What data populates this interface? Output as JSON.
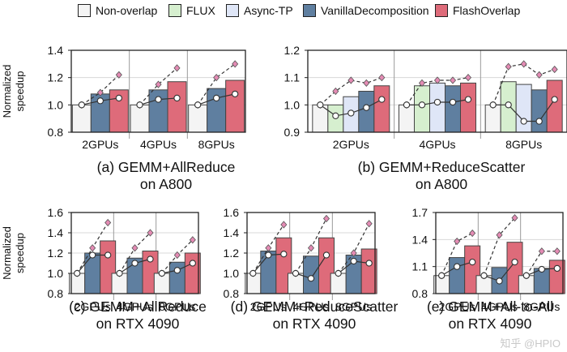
{
  "legend": {
    "items": [
      {
        "label": "Non-overlap",
        "color": "#f4f4f4"
      },
      {
        "label": "FLUX",
        "color": "#d6efcf"
      },
      {
        "label": "Async-TP",
        "color": "#dfe6f7"
      },
      {
        "label": "VanillaDecomposition",
        "color": "#5f7fa0"
      },
      {
        "label": "FlashOverlap",
        "color": "#de6b7a"
      }
    ]
  },
  "shared_ylabel": "Normalized speedup",
  "watermark": "知乎 @HPIO",
  "chart_data": [
    {
      "id": "a",
      "type": "bar",
      "title_line1": "(a) GEMM+AllReduce",
      "title_line2": "on A800",
      "ylabel": "Normalized speedup",
      "ylim": [
        0.8,
        1.4
      ],
      "yticks": [
        "0.8",
        "1.0",
        "1.2",
        "1.4"
      ],
      "groups": [
        "2GPUs",
        "4GPUs",
        "8GPUs"
      ],
      "methods": [
        "VanillaDecomposition",
        "FlashOverlap"
      ],
      "values": [
        [
          1.08,
          1.11
        ],
        [
          1.11,
          1.17
        ],
        [
          1.12,
          1.18
        ]
      ],
      "lines": [
        {
          "style": "dashed-diamond",
          "values": [
            [
              1.0,
              1.09,
              1.22
            ],
            [
              1.0,
              1.15,
              1.27
            ],
            [
              1.0,
              1.2,
              1.3
            ]
          ]
        },
        {
          "style": "solid-circle",
          "values": [
            [
              1.0,
              1.03,
              1.05
            ],
            [
              1.0,
              1.04,
              1.05
            ],
            [
              1.0,
              1.05,
              1.08
            ]
          ]
        }
      ]
    },
    {
      "id": "b",
      "type": "bar",
      "title_line1": "(b) GEMM+ReduceScatter",
      "title_line2": "on A800",
      "ylabel": "",
      "ylim": [
        0.9,
        1.2
      ],
      "yticks": [
        "0.9",
        "1.0",
        "1.1",
        "1.2"
      ],
      "groups": [
        "2GPUs",
        "4GPUs",
        "8GPUs"
      ],
      "methods": [
        "FLUX",
        "Async-TP",
        "VanillaDecomposition",
        "FlashOverlap"
      ],
      "values": [
        [
          1.0,
          1.03,
          1.05,
          1.07
        ],
        [
          1.07,
          1.08,
          1.07,
          1.08
        ],
        [
          1.085,
          1.075,
          1.055,
          1.09
        ]
      ],
      "lines": [
        {
          "style": "dashed-diamond",
          "values": [
            [
              1.0,
              1.05,
              1.09,
              1.08,
              1.1
            ],
            [
              1.0,
              1.08,
              1.09,
              1.09,
              1.1
            ],
            [
              1.0,
              1.14,
              1.15,
              1.11,
              1.13
            ]
          ]
        },
        {
          "style": "solid-circle",
          "values": [
            [
              1.0,
              0.96,
              0.97,
              0.99,
              1.02
            ],
            [
              1.0,
              1.0,
              1.01,
              1.01,
              1.02
            ],
            [
              1.0,
              1.0,
              0.94,
              0.94,
              1.02
            ]
          ]
        }
      ]
    },
    {
      "id": "c",
      "type": "bar",
      "title_line1": "(c) GEMM+AllReduce",
      "title_line2": "on RTX 4090",
      "ylabel": "Normalized speedup",
      "ylim": [
        0.8,
        1.6
      ],
      "yticks": [
        "0.8",
        "1.0",
        "1.2",
        "1.4",
        "1.6"
      ],
      "groups": [
        "2GPUs",
        "4GPUs",
        "8GPUs"
      ],
      "methods": [
        "VanillaDecomposition",
        "FlashOverlap"
      ],
      "values": [
        [
          1.2,
          1.32
        ],
        [
          1.15,
          1.22
        ],
        [
          1.11,
          1.2
        ]
      ],
      "lines": [
        {
          "style": "dashed-diamond",
          "values": [
            [
              1.0,
              1.25,
              1.5
            ],
            [
              1.0,
              1.25,
              1.4
            ],
            [
              1.0,
              1.18,
              1.33
            ]
          ]
        },
        {
          "style": "solid-circle",
          "values": [
            [
              1.0,
              1.18,
              1.18
            ],
            [
              1.0,
              1.1,
              1.14
            ],
            [
              1.0,
              1.03,
              1.1
            ]
          ]
        }
      ]
    },
    {
      "id": "d",
      "type": "bar",
      "title_line1": "(d) GEMM+ReduceScatter",
      "title_line2": "on RTX 4090",
      "ylabel": "",
      "ylim": [
        0.8,
        1.6
      ],
      "yticks": [
        "0.8",
        "1.0",
        "1.2",
        "1.4",
        "1.6"
      ],
      "groups": [
        "2GPUs",
        "4GPUs",
        "8GPUs"
      ],
      "methods": [
        "VanillaDecomposition",
        "FlashOverlap"
      ],
      "values": [
        [
          1.22,
          1.35
        ],
        [
          1.17,
          1.35
        ],
        [
          1.18,
          1.24
        ]
      ],
      "lines": [
        {
          "style": "dashed-diamond",
          "values": [
            [
              1.0,
              1.25,
              1.48
            ],
            [
              1.0,
              1.25,
              1.54
            ],
            [
              1.0,
              1.2,
              1.49
            ]
          ]
        },
        {
          "style": "solid-circle",
          "values": [
            [
              1.0,
              1.18,
              1.19
            ],
            [
              1.0,
              0.95,
              1.18
            ],
            [
              1.0,
              1.12,
              1.1
            ]
          ]
        }
      ]
    },
    {
      "id": "e",
      "type": "bar",
      "title_line1": "(e) GEMM+All-to-All",
      "title_line2": "on RTX 4090",
      "ylabel": "",
      "ylim": [
        0.8,
        1.7
      ],
      "yticks": [
        "0.8",
        "1.1",
        "1.4",
        "1.7"
      ],
      "groups": [
        "2GPUs",
        "4GPUs",
        "8GPUs"
      ],
      "methods": [
        "VanillaDecomposition",
        "FlashOverlap"
      ],
      "values": [
        [
          1.2,
          1.33
        ],
        [
          1.09,
          1.37
        ],
        [
          1.08,
          1.17
        ]
      ],
      "lines": [
        {
          "style": "dashed-diamond",
          "values": [
            [
              1.0,
              1.38,
              1.47
            ],
            [
              1.0,
              1.45,
              1.64
            ],
            [
              1.0,
              1.27,
              1.27
            ]
          ]
        },
        {
          "style": "solid-circle",
          "values": [
            [
              1.0,
              1.1,
              1.15
            ],
            [
              1.0,
              0.94,
              1.15
            ],
            [
              1.0,
              1.07,
              1.08
            ]
          ]
        }
      ]
    }
  ]
}
